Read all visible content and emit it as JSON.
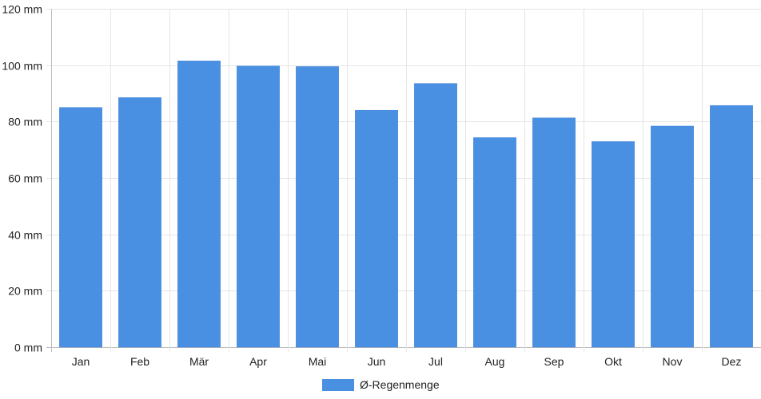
{
  "chart_data": {
    "type": "bar",
    "title": "",
    "xlabel": "",
    "ylabel": "",
    "categories": [
      "Jan",
      "Feb",
      "Mär",
      "Apr",
      "Mai",
      "Jun",
      "Jul",
      "Aug",
      "Sep",
      "Okt",
      "Nov",
      "Dez"
    ],
    "series": [
      {
        "name": "Ø-Regenmenge",
        "values": [
          85,
          88.5,
          101.5,
          99.7,
          99.5,
          84,
          93.5,
          74.3,
          81.3,
          72.9,
          78.4,
          85.7
        ],
        "color": "#4a90e2"
      }
    ],
    "ylim": [
      0,
      120
    ],
    "y_ticks": [
      0,
      20,
      40,
      60,
      80,
      100,
      120
    ],
    "y_tick_labels": [
      "0 mm",
      "20 mm",
      "40 mm",
      "60 mm",
      "80 mm",
      "100 mm",
      "120 mm"
    ],
    "grid": true,
    "legend_position": "bottom-center"
  }
}
